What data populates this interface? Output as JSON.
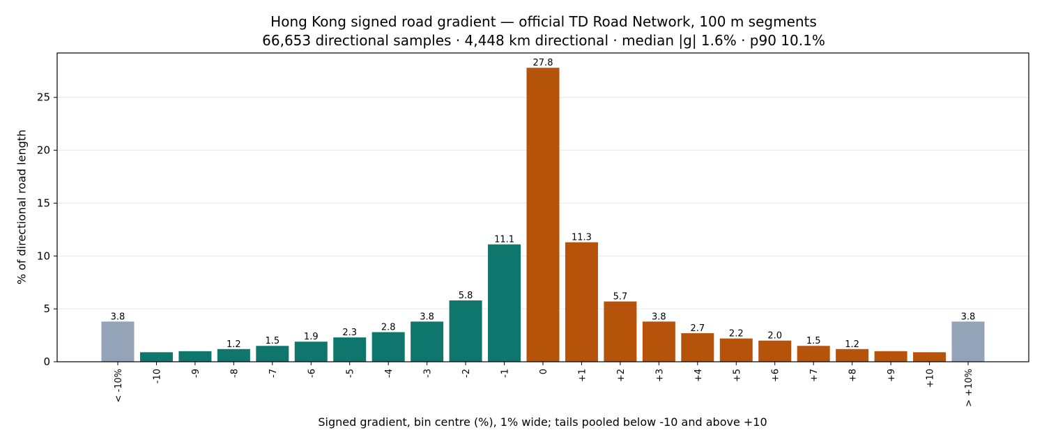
{
  "chart_data": {
    "type": "bar",
    "title": "Hong Kong signed road gradient — official TD Road Network, 100 m segments",
    "subtitle": "66,653 directional samples · 4,448 km directional · median |g| 1.6% · p90 10.1%",
    "xlabel": "Signed gradient, bin centre (%), 1% wide; tails pooled below -10 and above +10",
    "ylabel": "% of directional road length",
    "categories": [
      "< -10%",
      "-10",
      "-9",
      "-8",
      "-7",
      "-6",
      "-5",
      "-4",
      "-3",
      "-2",
      "-1",
      "0",
      "+1",
      "+2",
      "+3",
      "+4",
      "+5",
      "+6",
      "+7",
      "+8",
      "+9",
      "+10",
      "> +10%"
    ],
    "values": [
      3.8,
      0.9,
      1.0,
      1.2,
      1.5,
      1.9,
      2.3,
      2.8,
      3.8,
      5.8,
      11.1,
      27.8,
      11.3,
      5.7,
      3.8,
      2.7,
      2.2,
      2.0,
      1.5,
      1.2,
      1.0,
      0.9,
      3.8
    ],
    "data_labels": [
      "3.8",
      "",
      "",
      "1.2",
      "1.5",
      "1.9",
      "2.3",
      "2.8",
      "3.8",
      "5.8",
      "11.1",
      "27.8",
      "11.3",
      "5.7",
      "3.8",
      "2.7",
      "2.2",
      "2.0",
      "1.5",
      "1.2",
      "",
      "",
      "3.8"
    ],
    "bar_colors": [
      "#94a3b8",
      "#0f766e",
      "#0f766e",
      "#0f766e",
      "#0f766e",
      "#0f766e",
      "#0f766e",
      "#0f766e",
      "#0f766e",
      "#0f766e",
      "#0f766e",
      "#b45309",
      "#b45309",
      "#b45309",
      "#b45309",
      "#b45309",
      "#b45309",
      "#b45309",
      "#b45309",
      "#b45309",
      "#b45309",
      "#b45309",
      "#94a3b8"
    ],
    "yticks": [
      0,
      5,
      10,
      15,
      20,
      25
    ],
    "ylim": [
      0,
      29.2
    ],
    "grid": "y-horizontal",
    "legend": "none"
  }
}
